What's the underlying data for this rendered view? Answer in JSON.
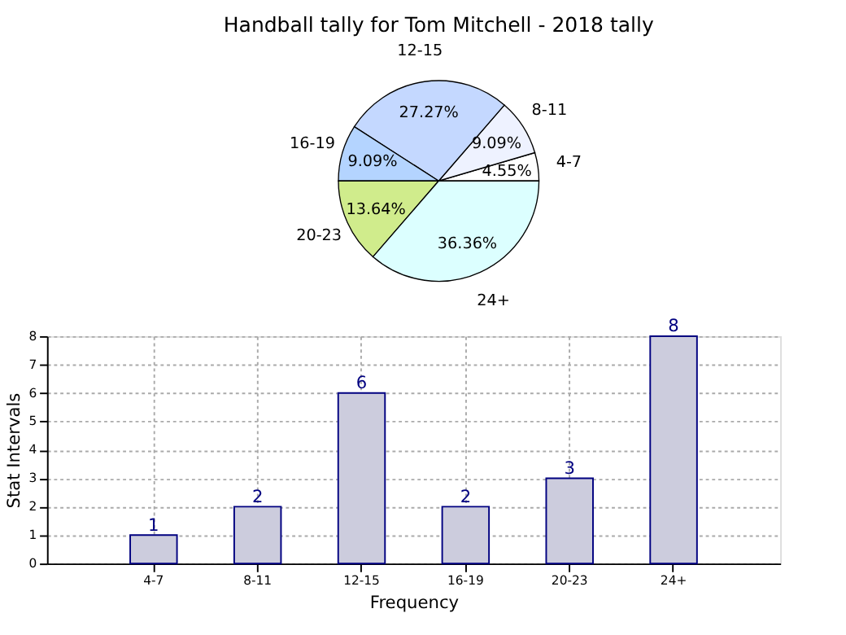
{
  "chart_data": [
    {
      "type": "pie",
      "title": "Handball tally for Tom Mitchell - 2018 tally",
      "categories": [
        "4-7",
        "8-11",
        "12-15",
        "16-19",
        "20-23",
        "24+"
      ],
      "values": [
        4.55,
        9.09,
        27.27,
        9.09,
        13.64,
        36.36
      ],
      "value_labels": [
        "4.55%",
        "9.09%",
        "27.27%",
        "9.09%",
        "13.64%",
        "36.36%"
      ],
      "colors": [
        "#ffffff",
        "#eef2ff",
        "#c4d8ff",
        "#b4d4ff",
        "#d0ec8c",
        "#dcffff"
      ],
      "legend": false
    },
    {
      "type": "bar",
      "xlabel": "Frequency",
      "ylabel": "Stat Intervals",
      "categories": [
        "4-7",
        "8-11",
        "12-15",
        "16-19",
        "20-23",
        "24+"
      ],
      "series": [
        {
          "color": "#ccccdd",
          "values": [
            1,
            2,
            6,
            2,
            3,
            8
          ]
        }
      ],
      "ylim": [
        0,
        8
      ],
      "yticks": [
        0,
        1,
        2,
        3,
        4,
        5,
        6,
        7,
        8
      ],
      "grid": true,
      "data_labels": true
    }
  ]
}
